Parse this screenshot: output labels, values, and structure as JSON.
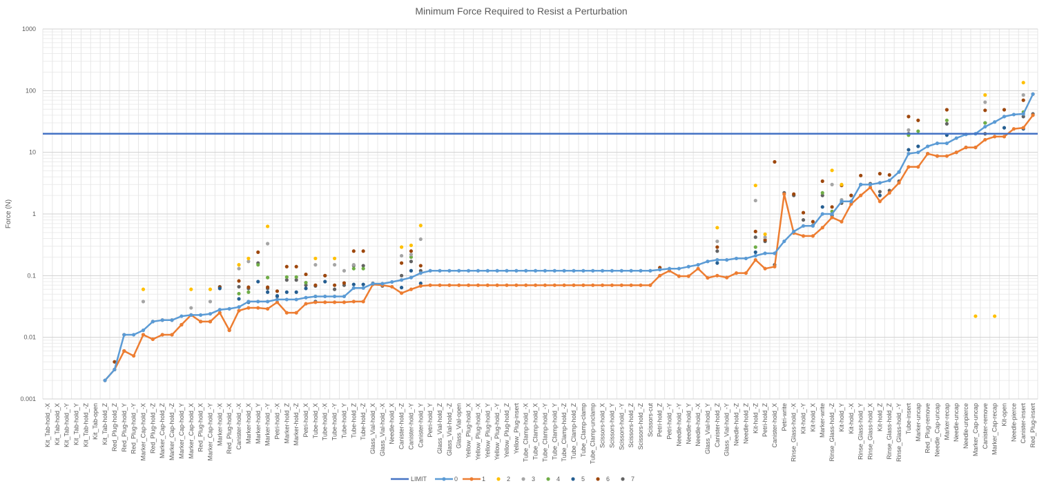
{
  "chart_data": {
    "type": "line",
    "title": "Minimum Force Required to Resist a Perturbation",
    "ylabel": "Force (N)",
    "xlabel": "",
    "y_scale": "log",
    "ylim": [
      0.001,
      1000
    ],
    "y_ticks": [
      "0.001",
      "0.01",
      "0.1",
      "1",
      "10",
      "100",
      "1000"
    ],
    "grid": true,
    "legend_position": "bottom",
    "categories": [
      "Kit_Tab-hold_-X",
      "Kit_Tab-hold_X",
      "Kit_Tab-hold_-Y",
      "Kit_Tab-hold_Y",
      "Kit_Tab-hold_-Z",
      "Kit_Tab-open",
      "Kit_Tab-hold_Z",
      "Red_Plug-hold_Z",
      "Red_Plug-hold_Y",
      "Red_Plug-hold_-Y",
      "Marker_Cap-hold_-X",
      "Red_Plug-hold_-Z",
      "Marker_Cap-hold_Z",
      "Marker_Cap-hold_-Z",
      "Marker_Cap-hold_Y",
      "Marker_Cap-hold_X",
      "Red_Plug-hold_X",
      "Marker_Cap-hold_-Y",
      "Marker-hold_-X",
      "Red_Plug-hold_-X",
      "Canister-hold_-X",
      "Marker-hold_X",
      "Marker-hold_Y",
      "Marker-hold_-Y",
      "Petri-hold_-X",
      "Marker-hold_Z",
      "Marker-hold_-Z",
      "Petri-hold_X",
      "Tube-hold_X",
      "Tube-hold_-X",
      "Tube-hold_-Y",
      "Tube-hold_Y",
      "Tube-hold_Z",
      "Tube-hold_-Z",
      "Glass_Vial-hold_X",
      "Glass_Vial-hold_-X",
      "Needle-hold_X",
      "Canister-hold_-Z",
      "Canister-hold_-Y",
      "Canister-hold_Y",
      "Petri-hold_Y",
      "Glass_Vial-hold_Z",
      "Glass_Vial-hold_-Z",
      "Glass_Vial-open",
      "Yellow_Plug-hold_X",
      "Yellow_Plug-hold_-X",
      "Yellow_Plug-hold_Y",
      "Yellow_Plug-hold_-Y",
      "Yellow_Plug-hold_Z",
      "Yellow_Plug-insert",
      "Tube_Clamp-hold_-X",
      "Tube_Clamp-hold_X",
      "Tube_Clamp-hold_-Y",
      "Tube_Clamp-hold_Y",
      "Tube_Clamp-hold_-Z",
      "Tube_Clamp-hold_Z",
      "Tube_Clamp-clamp",
      "Tube_Clamp-unclamp",
      "Scissors-hold_X",
      "Scissors-hold_Y",
      "Scissors-hold_-Y",
      "Scissors-hold_Z",
      "Scissors-hold_-Z",
      "Scissors-cut",
      "Petri-hold_Z",
      "Petri-hold_-Y",
      "Needle-hold_-Y",
      "Needle-hold_Y",
      "Needle-hold_-X",
      "Glass_Vial-hold_Y",
      "Canister-hold_Z",
      "Glass_Vial-hold_-Y",
      "Needle-hold_-Z",
      "Needle-hold_Z",
      "Kit-hold_-Z",
      "Petri-hold_Z",
      "Canister-hold_X",
      "Petri-write",
      "Rinse_Glass-hold_-X",
      "Kit-hold_-Y",
      "Kit-hold_X",
      "Marker-write",
      "Rinse_Glass-hold_-Z",
      "Kit-hold_Y",
      "Kit-hold_-X",
      "Rinse_Glass-hold_Y",
      "Rinse_Glass-hold_X",
      "Kit-hold_Z",
      "Rinse_Glass-hold_Z",
      "Rinse_Glass-hold_-Y",
      "Tube-insert",
      "Marker-uncap",
      "Red_Plug-remove",
      "Needle_Cap-uncap",
      "Marker-recap",
      "Needle-uncap",
      "Needle-unpierce",
      "Marker_Cap-uncap",
      "Canister-remove",
      "Marker_Cap-recap",
      "Kit-open",
      "Needle-pierce",
      "Canister-insert",
      "Red_Plug-insert"
    ],
    "series": [
      {
        "name": "LIMIT",
        "style": "line",
        "color": "#4472c4",
        "values": [
          20,
          20,
          20,
          20,
          20,
          20,
          20,
          20,
          20,
          20,
          20,
          20,
          20,
          20,
          20,
          20,
          20,
          20,
          20,
          20,
          20,
          20,
          20,
          20,
          20,
          20,
          20,
          20,
          20,
          20,
          20,
          20,
          20,
          20,
          20,
          20,
          20,
          20,
          20,
          20,
          20,
          20,
          20,
          20,
          20,
          20,
          20,
          20,
          20,
          20,
          20,
          20,
          20,
          20,
          20,
          20,
          20,
          20,
          20,
          20,
          20,
          20,
          20,
          20,
          20,
          20,
          20,
          20,
          20,
          20,
          20,
          20,
          20,
          20,
          20,
          20,
          20,
          20,
          20,
          20,
          20,
          20,
          20,
          20,
          20,
          20,
          20,
          20,
          20,
          20,
          20,
          20,
          20,
          20,
          20,
          20,
          20,
          20,
          20,
          20,
          20,
          20,
          20,
          20
        ]
      },
      {
        "name": "0",
        "style": "line-marker",
        "color": "#5b9bd5",
        "values": [
          null,
          null,
          null,
          null,
          null,
          null,
          0.002,
          0.003,
          0.011,
          0.011,
          0.013,
          0.018,
          0.019,
          0.019,
          0.022,
          0.023,
          0.023,
          0.024,
          0.028,
          0.029,
          0.031,
          0.038,
          0.038,
          0.038,
          0.041,
          0.041,
          0.041,
          0.044,
          0.046,
          0.046,
          0.046,
          0.046,
          0.063,
          0.063,
          0.074,
          0.074,
          0.079,
          0.085,
          0.093,
          0.11,
          0.12,
          0.12,
          0.12,
          0.12,
          0.12,
          0.12,
          0.12,
          0.12,
          0.12,
          0.12,
          0.12,
          0.12,
          0.12,
          0.12,
          0.12,
          0.12,
          0.12,
          0.12,
          0.12,
          0.12,
          0.12,
          0.12,
          0.12,
          0.12,
          0.125,
          0.13,
          0.13,
          0.14,
          0.15,
          0.17,
          0.18,
          0.18,
          0.19,
          0.19,
          0.21,
          0.23,
          0.23,
          0.36,
          0.52,
          0.64,
          0.64,
          1.0,
          1.0,
          1.6,
          1.6,
          3.0,
          3.0,
          3.2,
          3.5,
          4.8,
          9.5,
          10,
          12.5,
          14,
          14,
          17,
          19.5,
          20,
          26,
          31,
          38,
          41,
          42,
          88
        ]
      },
      {
        "name": "1",
        "style": "line-marker",
        "color": "#ed7d31",
        "values": [
          null,
          null,
          null,
          null,
          null,
          null,
          0.002,
          0.003,
          0.006,
          0.005,
          0.011,
          0.0093,
          0.011,
          0.011,
          0.016,
          0.023,
          0.018,
          0.018,
          0.025,
          0.013,
          0.027,
          0.03,
          0.03,
          0.029,
          0.037,
          0.025,
          0.025,
          0.035,
          0.037,
          0.037,
          0.037,
          0.037,
          0.038,
          0.038,
          0.072,
          0.07,
          0.066,
          0.052,
          0.06,
          0.068,
          0.07,
          0.07,
          0.07,
          0.07,
          0.07,
          0.07,
          0.07,
          0.07,
          0.07,
          0.07,
          0.07,
          0.07,
          0.07,
          0.07,
          0.07,
          0.07,
          0.07,
          0.07,
          0.07,
          0.07,
          0.07,
          0.07,
          0.07,
          0.07,
          0.1,
          0.12,
          0.098,
          0.098,
          0.13,
          0.092,
          0.1,
          0.093,
          0.11,
          0.11,
          0.18,
          0.13,
          0.14,
          2.1,
          0.49,
          0.44,
          0.44,
          0.6,
          0.88,
          0.75,
          1.45,
          2.0,
          2.7,
          1.6,
          2.2,
          3.2,
          5.8,
          5.8,
          9.5,
          8.7,
          8.7,
          10,
          12,
          12,
          16,
          18,
          18,
          24,
          25,
          40
        ]
      },
      {
        "name": "2",
        "style": "marker",
        "color": "#ffc000",
        "values": [
          null,
          null,
          null,
          null,
          null,
          null,
          null,
          null,
          null,
          null,
          0.06,
          null,
          null,
          null,
          null,
          0.06,
          null,
          0.06,
          null,
          null,
          0.15,
          0.19,
          null,
          0.63,
          null,
          null,
          null,
          null,
          0.19,
          null,
          0.19,
          null,
          null,
          null,
          null,
          null,
          null,
          0.29,
          0.31,
          0.65,
          null,
          null,
          null,
          null,
          null,
          null,
          null,
          null,
          null,
          null,
          null,
          null,
          null,
          null,
          null,
          null,
          null,
          null,
          null,
          null,
          null,
          null,
          null,
          null,
          null,
          null,
          null,
          null,
          null,
          null,
          0.6,
          null,
          null,
          null,
          2.9,
          0.47,
          null,
          null,
          null,
          null,
          null,
          null,
          5.1,
          3.0,
          null,
          null,
          null,
          null,
          null,
          null,
          null,
          null,
          null,
          null,
          null,
          null,
          null,
          0.022,
          85,
          0.022,
          null,
          null,
          135,
          null
        ]
      },
      {
        "name": "3",
        "style": "marker",
        "color": "#a5a5a5",
        "values": [
          null,
          null,
          null,
          null,
          null,
          null,
          null,
          null,
          null,
          null,
          0.038,
          null,
          null,
          null,
          null,
          0.03,
          null,
          0.038,
          null,
          null,
          0.13,
          0.17,
          null,
          0.33,
          null,
          null,
          null,
          null,
          0.15,
          null,
          0.15,
          0.12,
          0.15,
          null,
          null,
          null,
          null,
          0.21,
          0.22,
          0.39,
          null,
          null,
          null,
          null,
          null,
          null,
          null,
          null,
          null,
          null,
          null,
          null,
          null,
          null,
          null,
          null,
          null,
          null,
          null,
          null,
          null,
          null,
          null,
          null,
          null,
          null,
          null,
          null,
          null,
          null,
          0.36,
          null,
          null,
          null,
          1.65,
          0.42,
          null,
          null,
          null,
          null,
          null,
          null,
          3.0,
          1.7,
          null,
          null,
          null,
          null,
          null,
          null,
          23,
          null,
          null,
          null,
          null,
          null,
          null,
          null,
          65,
          null,
          null,
          null,
          85,
          null
        ]
      },
      {
        "name": "4",
        "style": "marker",
        "color": "#70ad47",
        "values": [
          null,
          null,
          null,
          null,
          null,
          null,
          null,
          null,
          null,
          null,
          null,
          null,
          null,
          null,
          null,
          null,
          null,
          null,
          null,
          null,
          0.051,
          0.054,
          0.15,
          0.093,
          null,
          0.095,
          0.095,
          0.077,
          0.046,
          null,
          null,
          null,
          0.13,
          0.13,
          null,
          null,
          null,
          null,
          0.2,
          null,
          null,
          null,
          null,
          null,
          null,
          null,
          null,
          null,
          null,
          null,
          null,
          null,
          null,
          null,
          null,
          null,
          null,
          null,
          null,
          null,
          null,
          null,
          null,
          null,
          null,
          null,
          null,
          null,
          null,
          null,
          0.18,
          null,
          null,
          null,
          0.29,
          null,
          null,
          null,
          null,
          null,
          null,
          2.2,
          1.1,
          1.6,
          null,
          null,
          null,
          null,
          null,
          4.8,
          19,
          22,
          null,
          null,
          33,
          null,
          null,
          null,
          30,
          null,
          null,
          null,
          45,
          null
        ]
      },
      {
        "name": "5",
        "style": "marker",
        "color": "#255e91",
        "values": [
          null,
          null,
          null,
          null,
          null,
          null,
          null,
          null,
          null,
          null,
          null,
          null,
          null,
          null,
          null,
          null,
          null,
          null,
          0.062,
          null,
          0.042,
          0.037,
          0.08,
          0.054,
          0.047,
          0.054,
          0.054,
          0.062,
          0.038,
          0.08,
          null,
          null,
          0.072,
          0.072,
          null,
          null,
          null,
          0.064,
          0.12,
          0.075,
          null,
          null,
          null,
          null,
          null,
          null,
          null,
          null,
          null,
          null,
          null,
          null,
          null,
          null,
          null,
          null,
          null,
          null,
          null,
          null,
          null,
          null,
          null,
          null,
          null,
          null,
          null,
          null,
          null,
          null,
          0.16,
          null,
          null,
          null,
          0.24,
          null,
          null,
          null,
          null,
          null,
          null,
          1.3,
          0.95,
          null,
          1.6,
          null,
          null,
          2.0,
          null,
          null,
          11,
          12.5,
          null,
          null,
          19,
          null,
          null,
          null,
          30,
          null,
          25,
          null,
          24,
          null
        ]
      },
      {
        "name": "6",
        "style": "marker",
        "color": "#9e480e",
        "values": [
          null,
          null,
          null,
          null,
          null,
          null,
          null,
          0.004,
          0.011,
          null,
          null,
          0.018,
          0.019,
          0.019,
          null,
          null,
          null,
          null,
          0.065,
          null,
          0.082,
          0.065,
          0.24,
          0.065,
          0.056,
          0.14,
          0.14,
          0.105,
          0.07,
          0.1,
          0.07,
          0.076,
          0.25,
          0.25,
          null,
          null,
          null,
          0.16,
          0.25,
          0.145,
          null,
          null,
          null,
          null,
          null,
          null,
          null,
          null,
          null,
          null,
          null,
          null,
          null,
          null,
          null,
          null,
          null,
          null,
          null,
          null,
          null,
          null,
          null,
          null,
          0.135,
          null,
          null,
          null,
          null,
          null,
          0.29,
          null,
          null,
          null,
          0.52,
          0.38,
          7.0,
          null,
          2.1,
          1.05,
          0.75,
          3.4,
          1.3,
          2.9,
          2.0,
          4.2,
          null,
          4.5,
          4.3,
          null,
          38,
          33,
          null,
          null,
          49,
          null,
          null,
          null,
          48,
          null,
          49,
          null,
          70,
          88
        ]
      },
      {
        "name": "7",
        "style": "marker",
        "color": "#636363",
        "values": [
          null,
          null,
          null,
          null,
          null,
          null,
          null,
          0.003,
          0.006,
          null,
          0.011,
          null,
          0.011,
          0.011,
          0.016,
          0.023,
          0.018,
          0.018,
          0.066,
          0.013,
          0.066,
          0.062,
          0.16,
          0.062,
          0.046,
          0.085,
          0.085,
          0.07,
          0.068,
          0.1,
          0.06,
          0.07,
          0.145,
          0.145,
          0.075,
          0.068,
          null,
          0.1,
          0.17,
          0.12,
          null,
          null,
          null,
          null,
          null,
          null,
          null,
          null,
          null,
          null,
          null,
          null,
          null,
          null,
          null,
          null,
          null,
          null,
          null,
          null,
          null,
          null,
          null,
          null,
          null,
          null,
          null,
          null,
          null,
          null,
          0.25,
          null,
          null,
          null,
          0.42,
          0.36,
          0.15,
          2.2,
          2.0,
          0.8,
          0.65,
          2.0,
          0.88,
          1.5,
          2.0,
          3.0,
          3.1,
          2.3,
          2.4,
          3.4,
          20,
          null,
          9.5,
          8.7,
          29,
          10,
          12,
          12,
          20,
          null,
          null,
          null,
          38,
          42
        ]
      }
    ]
  }
}
